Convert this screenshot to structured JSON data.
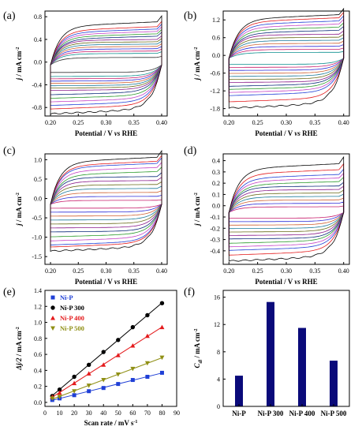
{
  "chart_data": [
    {
      "panel": "(a)",
      "type": "line",
      "xlabel_parts": [
        "Potential / V ",
        "vs",
        " RHE"
      ],
      "ylabel_parts": [
        "j",
        " / mA cm",
        "-2"
      ],
      "xlim": [
        0.19,
        0.41
      ],
      "ylim": [
        -0.95,
        0.9
      ],
      "xticks": [
        "0.20",
        "0.25",
        "0.30",
        "0.35",
        "0.40"
      ],
      "yticks": [
        "-0.8",
        "-0.4",
        "0.0",
        "0.4",
        "0.8"
      ],
      "cv_center": -0.05,
      "cv_upper_halfwidth": [
        0.13,
        0.2,
        0.24,
        0.28,
        0.32,
        0.36,
        0.4,
        0.44,
        0.48,
        0.52,
        0.56,
        0.6,
        0.64,
        0.72
      ],
      "cv_lower_halfwidth": [
        0.13,
        0.2,
        0.24,
        0.28,
        0.32,
        0.36,
        0.4,
        0.44,
        0.5,
        0.56,
        0.62,
        0.68,
        0.74,
        0.82
      ]
    },
    {
      "panel": "(b)",
      "type": "line",
      "xlabel_parts": [
        "Potential / V ",
        "vs",
        " RHE"
      ],
      "ylabel_parts": [
        "j",
        " / mA cm",
        "-2"
      ],
      "xlim": [
        0.19,
        0.41
      ],
      "ylim": [
        -2.05,
        1.5
      ],
      "xticks": [
        "0.20",
        "0.25",
        "0.30",
        "0.35",
        "0.40"
      ],
      "yticks": [
        "-1.8",
        "-1.2",
        "-0.6",
        "0.0",
        "0.6",
        "1.2"
      ],
      "cv_center": -0.1,
      "cv_upper_halfwidth": [
        0.2,
        0.3,
        0.4,
        0.5,
        0.6,
        0.7,
        0.8,
        0.9,
        1.0,
        1.1,
        1.2,
        1.3,
        1.4
      ],
      "cv_lower_halfwidth": [
        0.2,
        0.3,
        0.4,
        0.5,
        0.6,
        0.7,
        0.8,
        0.9,
        1.0,
        1.1,
        1.2,
        1.4,
        1.6
      ]
    },
    {
      "panel": "(c)",
      "type": "line",
      "xlabel_parts": [
        "Potential / V ",
        "vs",
        " RHE"
      ],
      "ylabel_parts": [
        "j",
        " / mA cm",
        "-2"
      ],
      "xlim": [
        0.19,
        0.41
      ],
      "ylim": [
        -1.7,
        1.15
      ],
      "xticks": [
        "0.20",
        "0.25",
        "0.30",
        "0.35",
        "0.40"
      ],
      "yticks": [
        "-1.5",
        "-1.0",
        "-0.5",
        "0.0",
        "0.5",
        "1.0"
      ],
      "cv_center": -0.15,
      "cv_upper_halfwidth": [
        0.1,
        0.2,
        0.3,
        0.4,
        0.5,
        0.6,
        0.7,
        0.8,
        0.9,
        1.0,
        1.05,
        1.15
      ],
      "cv_lower_halfwidth": [
        0.1,
        0.2,
        0.3,
        0.4,
        0.5,
        0.6,
        0.7,
        0.8,
        0.9,
        1.0,
        1.05,
        1.15
      ]
    },
    {
      "panel": "(d)",
      "type": "line",
      "xlabel_parts": [
        "Potential / V ",
        "vs",
        " RHE"
      ],
      "ylabel_parts": [
        "j",
        " / mA cm",
        "-2"
      ],
      "xlim": [
        0.19,
        0.41
      ],
      "ylim": [
        -0.52,
        0.46
      ],
      "xticks": [
        "0.20",
        "0.25",
        "0.30",
        "0.35",
        "0.40"
      ],
      "yticks": [
        "-0.4",
        "-0.3",
        "-0.2",
        "-0.1",
        "0.0",
        "0.1",
        "0.2",
        "0.3",
        "0.4"
      ],
      "cv_center": -0.06,
      "cv_upper_halfwidth": [
        0.05,
        0.08,
        0.11,
        0.14,
        0.17,
        0.2,
        0.23,
        0.26,
        0.29,
        0.32,
        0.36,
        0.41
      ],
      "cv_lower_halfwidth": [
        0.05,
        0.08,
        0.11,
        0.14,
        0.17,
        0.2,
        0.23,
        0.26,
        0.29,
        0.32,
        0.36,
        0.41
      ]
    },
    {
      "panel": "(e)",
      "type": "scatter",
      "xlabel_parts": [
        "Scan rate / mV s",
        "-1"
      ],
      "ylabel_parts": [
        "Δj/2",
        " / mA cm",
        "-2"
      ],
      "xlim": [
        0,
        90
      ],
      "ylim": [
        -0.05,
        1.4
      ],
      "xticks": [
        "0",
        "10",
        "20",
        "30",
        "40",
        "50",
        "60",
        "70",
        "80",
        "90"
      ],
      "yticks": [
        "0.0",
        "0.2",
        "0.4",
        "0.6",
        "0.8",
        "1.0",
        "1.2",
        "1.4"
      ],
      "x": [
        5,
        10,
        20,
        30,
        40,
        50,
        60,
        70,
        80
      ],
      "series": [
        {
          "name": "Ni-P",
          "color": "#1f3fd6",
          "marker": "square",
          "values": [
            0.03,
            0.05,
            0.09,
            0.14,
            0.18,
            0.23,
            0.28,
            0.32,
            0.37
          ]
        },
        {
          "name": "Ni-P 300",
          "color": "#000000",
          "marker": "circle",
          "values": [
            0.08,
            0.16,
            0.32,
            0.47,
            0.63,
            0.78,
            0.94,
            1.09,
            1.24
          ]
        },
        {
          "name": "Ni-P 400",
          "color": "#e41a1c",
          "marker": "triangle-up",
          "values": [
            0.07,
            0.12,
            0.24,
            0.36,
            0.47,
            0.59,
            0.71,
            0.83,
            0.94
          ]
        },
        {
          "name": "Ni-P 500",
          "color": "#8f8f14",
          "marker": "triangle-down",
          "values": [
            0.05,
            0.07,
            0.14,
            0.21,
            0.28,
            0.35,
            0.42,
            0.49,
            0.56
          ]
        }
      ]
    },
    {
      "panel": "(f)",
      "type": "bar",
      "ylabel_parts": [
        "C",
        "dl",
        " / mA cm",
        "-2"
      ],
      "categories": [
        "Ni-P",
        "Ni-P 300",
        "Ni-P 400",
        "Ni-P 500"
      ],
      "values": [
        4.5,
        15.3,
        11.5,
        6.7
      ],
      "ylim": [
        0,
        17
      ],
      "yticks": [
        "0",
        "4",
        "8",
        "12",
        "16"
      ],
      "bar_color": "#0a0a7a"
    }
  ],
  "colors": {
    "cv_palette": [
      "#000000",
      "#e41a1c",
      "#1f3fd6",
      "#c542c5",
      "#2a9a2a",
      "#0b2a7a",
      "#8a1a8a",
      "#6b6b1a",
      "#1a7a9a",
      "#d06030",
      "#2c2cd8",
      "#c71c6b",
      "#0d8f8f",
      "#333333"
    ]
  }
}
